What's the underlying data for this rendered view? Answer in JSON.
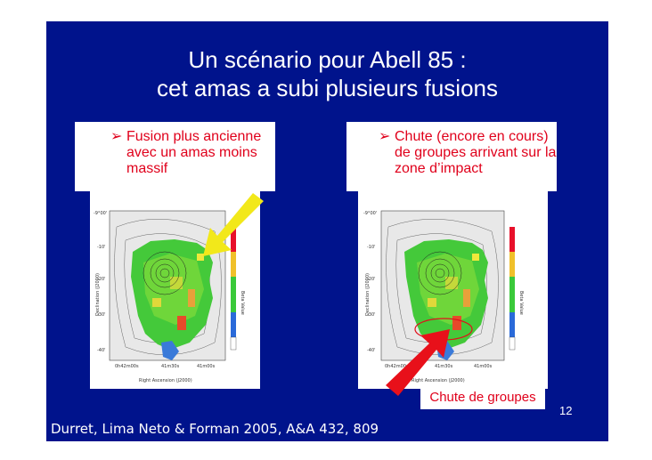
{
  "slide": {
    "title_line1": "Un scénario pour Abell 85 :",
    "title_line2": "cet amas a subi plusieurs fusions",
    "left_bullet": [
      "Fusion plus ancienne",
      "avec un amas moins",
      "massif"
    ],
    "right_bullet": [
      "Chute (encore en cours)",
      "de groupes arrivant sur la",
      "zone d’impact"
    ],
    "callout": "Chute de groupes",
    "footer": "Durret, Lima Neto & Forman 2005, A&A 432, 809",
    "page_number": "12"
  },
  "map_labels": {
    "ylabel": "Declination (J2000)",
    "xlabel": "Right Ascension (J2000)",
    "colorbar_label": "Beta Value",
    "left_yticks": [
      "-9°00'",
      "-10'",
      "-20'",
      "-30'",
      "-40'"
    ],
    "left_xticks": [
      "0h42m00s",
      "41m30s",
      "41m00s"
    ],
    "right_yticks": [
      "-9°00'",
      "-10'",
      "-20'",
      "-30'",
      "-40'"
    ],
    "right_xticks": [
      "0h42m00s",
      "41m30s",
      "41m00s"
    ]
  },
  "colors": {
    "background": "#00138c",
    "text_red": "#e0001b",
    "arrow_yellow": "#f2e81a",
    "arrow_red": "#e8101a"
  }
}
